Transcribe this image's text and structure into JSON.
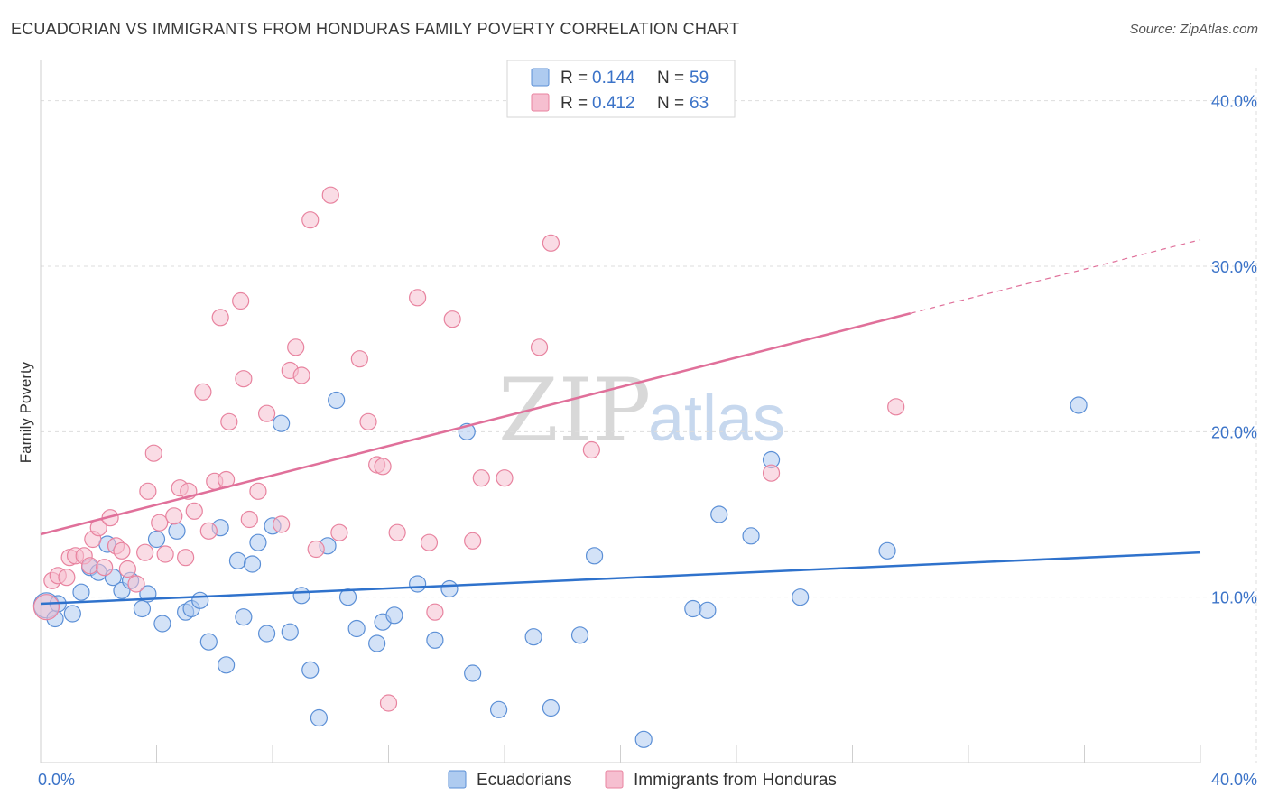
{
  "header": {
    "title": "ECUADORIAN VS IMMIGRANTS FROM HONDURAS FAMILY POVERTY CORRELATION CHART",
    "source": "Source: ZipAtlas.com"
  },
  "watermark": {
    "zip": "ZIP",
    "atlas": "atlas"
  },
  "colors": {
    "blue_fill": "#aecbf0",
    "blue_stroke": "#5b8fd6",
    "blue_line": "#2f72cc",
    "pink_fill": "#f6bfd0",
    "pink_stroke": "#e8839f",
    "pink_line": "#e0709a",
    "tick_text": "#3b73c8",
    "grid": "#dddddd"
  },
  "legend": {
    "r_label": "R =",
    "n_label": "N =",
    "rows": [
      {
        "r": "0.144",
        "n": "59"
      },
      {
        "r": "0.412",
        "n": "63"
      }
    ]
  },
  "bottom_legend": [
    "Ecuadorians",
    "Immigrants from Honduras"
  ],
  "chart_data": {
    "type": "scatter",
    "xlabel": "",
    "ylabel": "Family Poverty",
    "xlim": [
      0,
      40
    ],
    "ylim": [
      0,
      42
    ],
    "x_tick_labels": [
      {
        "value": 0,
        "label": "0.0%"
      },
      {
        "value": 40,
        "label": "40.0%"
      }
    ],
    "y_tick_labels": [
      {
        "value": 10,
        "label": "10.0%"
      },
      {
        "value": 20,
        "label": "20.0%"
      },
      {
        "value": 30,
        "label": "30.0%"
      },
      {
        "value": 40,
        "label": "40.0%"
      }
    ],
    "legend_position": "top-center",
    "series": [
      {
        "name": "Ecuadorians",
        "r": 0.144,
        "n": 59,
        "trend": {
          "x": [
            0,
            40
          ],
          "y": [
            9.6,
            12.7
          ],
          "dashed_from": null
        },
        "points": [
          [
            0.2,
            9.5
          ],
          [
            0.5,
            8.7
          ],
          [
            0.6,
            9.6
          ],
          [
            1.1,
            9.0
          ],
          [
            1.4,
            10.3
          ],
          [
            1.7,
            11.8
          ],
          [
            2.0,
            11.5
          ],
          [
            2.3,
            13.2
          ],
          [
            2.5,
            11.2
          ],
          [
            2.8,
            10.4
          ],
          [
            3.1,
            11.0
          ],
          [
            3.5,
            9.3
          ],
          [
            3.7,
            10.2
          ],
          [
            4.0,
            13.5
          ],
          [
            4.2,
            8.4
          ],
          [
            4.7,
            14.0
          ],
          [
            5.0,
            9.1
          ],
          [
            5.2,
            9.3
          ],
          [
            5.5,
            9.8
          ],
          [
            5.8,
            7.3
          ],
          [
            6.2,
            14.2
          ],
          [
            6.4,
            5.9
          ],
          [
            6.8,
            12.2
          ],
          [
            7.0,
            8.8
          ],
          [
            7.3,
            12.0
          ],
          [
            7.5,
            13.3
          ],
          [
            7.8,
            7.8
          ],
          [
            8.0,
            14.3
          ],
          [
            8.3,
            20.5
          ],
          [
            8.6,
            7.9
          ],
          [
            9.0,
            10.1
          ],
          [
            9.3,
            5.6
          ],
          [
            9.6,
            2.7
          ],
          [
            9.9,
            13.1
          ],
          [
            10.2,
            21.9
          ],
          [
            10.6,
            10.0
          ],
          [
            10.9,
            8.1
          ],
          [
            11.6,
            7.2
          ],
          [
            11.8,
            8.5
          ],
          [
            12.2,
            8.9
          ],
          [
            13.0,
            10.8
          ],
          [
            13.6,
            7.4
          ],
          [
            14.1,
            10.5
          ],
          [
            14.7,
            20.0
          ],
          [
            14.9,
            5.4
          ],
          [
            15.8,
            3.2
          ],
          [
            17.0,
            7.6
          ],
          [
            17.6,
            3.3
          ],
          [
            18.6,
            7.7
          ],
          [
            19.1,
            12.5
          ],
          [
            20.8,
            1.4
          ],
          [
            22.5,
            9.3
          ],
          [
            23.0,
            9.2
          ],
          [
            23.4,
            15.0
          ],
          [
            24.5,
            13.7
          ],
          [
            25.2,
            18.3
          ],
          [
            26.2,
            10.0
          ],
          [
            29.2,
            12.8
          ],
          [
            35.8,
            21.6
          ]
        ]
      },
      {
        "name": "Immigrants from Honduras",
        "r": 0.412,
        "n": 63,
        "trend": {
          "x": [
            0,
            40
          ],
          "y": [
            13.8,
            31.6
          ],
          "dashed_from": 30
        },
        "points": [
          [
            0.2,
            9.4
          ],
          [
            0.4,
            11.0
          ],
          [
            0.6,
            11.3
          ],
          [
            0.9,
            11.2
          ],
          [
            1.0,
            12.4
          ],
          [
            1.2,
            12.5
          ],
          [
            1.5,
            12.5
          ],
          [
            1.7,
            11.9
          ],
          [
            1.8,
            13.5
          ],
          [
            2.0,
            14.2
          ],
          [
            2.2,
            11.8
          ],
          [
            2.4,
            14.8
          ],
          [
            2.6,
            13.1
          ],
          [
            2.8,
            12.8
          ],
          [
            3.0,
            11.7
          ],
          [
            3.3,
            10.8
          ],
          [
            3.6,
            12.7
          ],
          [
            3.7,
            16.4
          ],
          [
            3.9,
            18.7
          ],
          [
            4.1,
            14.5
          ],
          [
            4.3,
            12.6
          ],
          [
            4.6,
            14.9
          ],
          [
            4.8,
            16.6
          ],
          [
            5.0,
            12.4
          ],
          [
            5.1,
            16.4
          ],
          [
            5.3,
            15.2
          ],
          [
            5.6,
            22.4
          ],
          [
            5.8,
            14.0
          ],
          [
            6.0,
            17.0
          ],
          [
            6.2,
            26.9
          ],
          [
            6.4,
            17.1
          ],
          [
            6.5,
            20.6
          ],
          [
            6.9,
            27.9
          ],
          [
            7.0,
            23.2
          ],
          [
            7.2,
            14.7
          ],
          [
            7.5,
            16.4
          ],
          [
            7.8,
            21.1
          ],
          [
            8.3,
            14.4
          ],
          [
            8.6,
            23.7
          ],
          [
            8.8,
            25.1
          ],
          [
            9.0,
            23.4
          ],
          [
            9.3,
            32.8
          ],
          [
            9.5,
            12.9
          ],
          [
            10.0,
            34.3
          ],
          [
            10.3,
            13.9
          ],
          [
            11.0,
            24.4
          ],
          [
            11.3,
            20.6
          ],
          [
            11.6,
            18.0
          ],
          [
            11.8,
            17.9
          ],
          [
            12.0,
            3.6
          ],
          [
            12.3,
            13.9
          ],
          [
            13.0,
            28.1
          ],
          [
            13.4,
            13.3
          ],
          [
            13.6,
            9.1
          ],
          [
            14.2,
            26.8
          ],
          [
            14.9,
            13.4
          ],
          [
            15.2,
            17.2
          ],
          [
            16.0,
            17.2
          ],
          [
            17.2,
            25.1
          ],
          [
            17.6,
            31.4
          ],
          [
            19.0,
            18.9
          ],
          [
            25.2,
            17.5
          ],
          [
            29.5,
            21.5
          ]
        ]
      }
    ]
  }
}
